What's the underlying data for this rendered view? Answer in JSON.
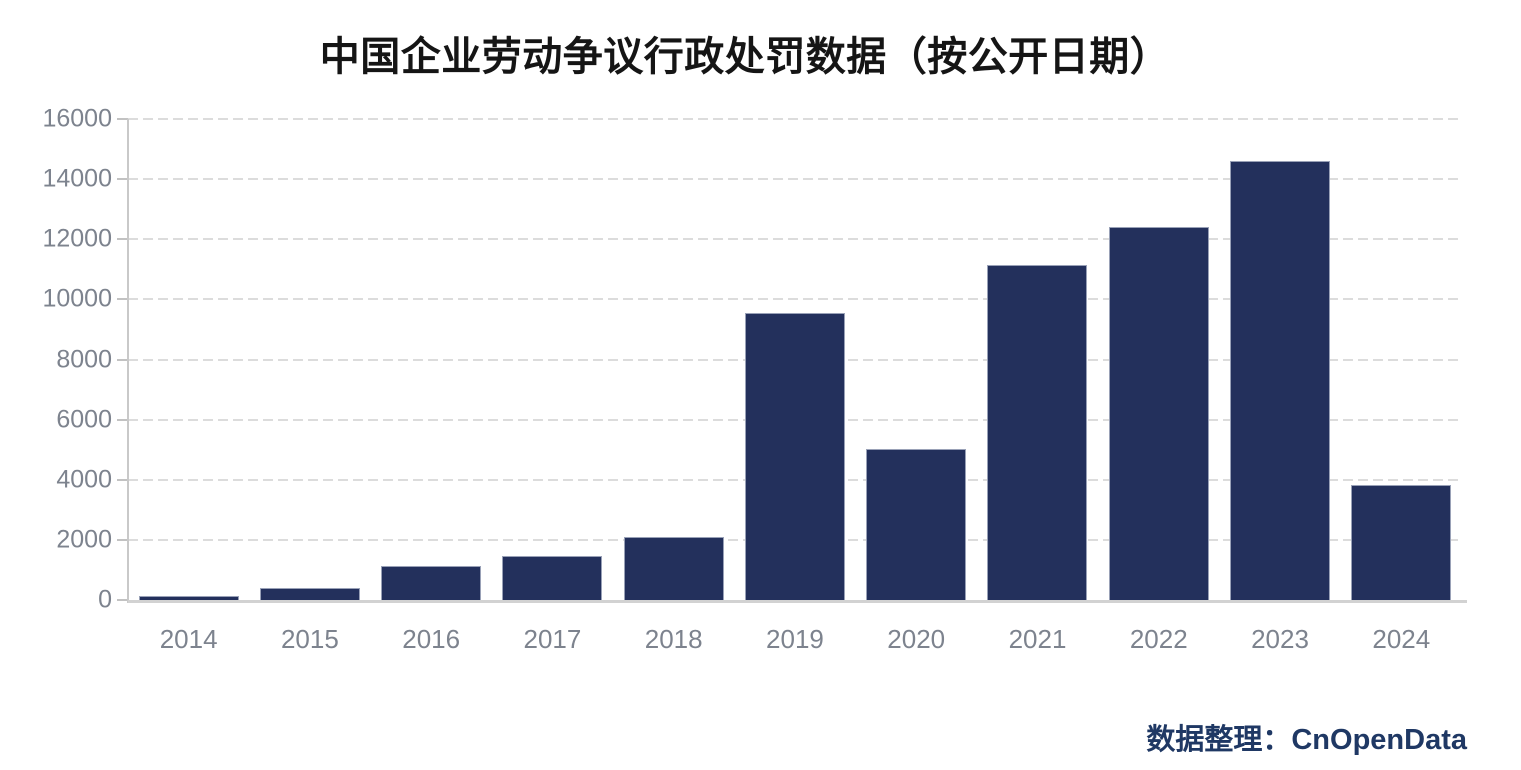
{
  "title": "中国企业劳动争议行政处罚数据（按公开日期）",
  "attribution": "数据整理：CnOpenData",
  "chart_data": {
    "type": "bar",
    "title": "中国企业劳动争议行政处罚数据（按公开日期）",
    "categories": [
      "2014",
      "2015",
      "2016",
      "2017",
      "2018",
      "2019",
      "2020",
      "2021",
      "2022",
      "2023",
      "2024"
    ],
    "values": [
      150,
      390,
      1130,
      1470,
      2080,
      9540,
      5020,
      11140,
      12400,
      14610,
      3830
    ],
    "xlabel": "",
    "ylabel": "",
    "ylim": [
      0,
      16000
    ],
    "yticks": [
      0,
      2000,
      4000,
      6000,
      8000,
      10000,
      12000,
      14000,
      16000
    ],
    "grid": "horizontal-dashed",
    "legend_position": "none",
    "bar_color": "#23305c",
    "source_note": "数据整理：CnOpenData"
  },
  "colors": {
    "background": "#ffffff",
    "bar": "#23305c",
    "bar_border": "#99a1b7",
    "grid": "#dcdcdc",
    "axis": "#c9c9c9",
    "tick_label": "#7d838e",
    "title": "#151515",
    "attribution": "#1f3864"
  }
}
